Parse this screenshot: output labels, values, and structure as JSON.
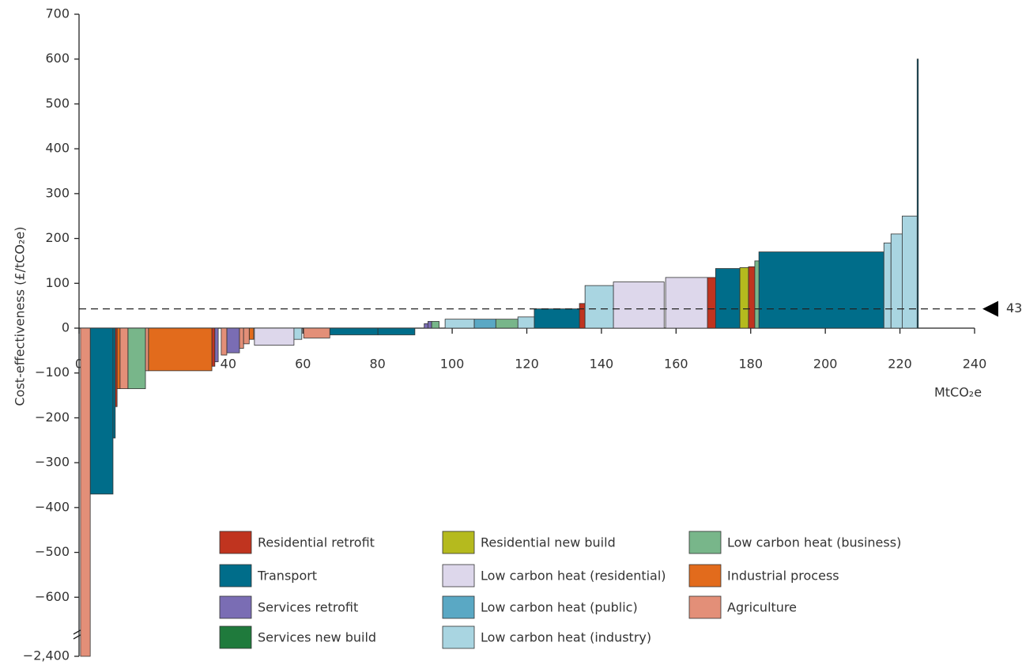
{
  "chart_data": {
    "type": "macc",
    "ylabel": "Cost-effectiveness (£/tCO₂e)",
    "xlabel": "MtCO₂e",
    "xlim": [
      0,
      240
    ],
    "xticks": [
      0,
      20,
      40,
      60,
      80,
      100,
      120,
      140,
      160,
      180,
      200,
      220,
      240
    ],
    "ylim": [
      -2400,
      700
    ],
    "axis_break": -680,
    "yticks": [
      700,
      600,
      500,
      400,
      300,
      200,
      100,
      0,
      {
        "value": -100,
        "label": "−100"
      },
      {
        "value": -200,
        "label": "−200"
      },
      {
        "value": -300,
        "label": "−300"
      },
      {
        "value": -400,
        "label": "−400"
      },
      {
        "value": -500,
        "label": "−500"
      },
      {
        "value": -600,
        "label": "−600"
      },
      {
        "value": -2400,
        "label": "−2,400"
      }
    ],
    "threshold": 43,
    "series": [
      {
        "name": "Residential retrofit",
        "color": "#c0341f",
        "x0": [
          9.7,
          35.6,
          134.1,
          168.4,
          179.4
        ],
        "x1": [
          10.2,
          36.4,
          135.6,
          170.6,
          181.1
        ],
        "values": [
          -175,
          -85,
          55,
          113,
          137
        ]
      },
      {
        "name": "Transport",
        "color": "#006d8a",
        "x0": [
          3.0,
          9.1,
          67.2,
          80.1,
          122,
          170.6,
          182.2,
          224.6
        ],
        "x1": [
          9.1,
          9.7,
          80.1,
          90.0,
          134.1,
          177.1,
          215.7,
          224.9
        ],
        "values": [
          -370,
          -245,
          -15,
          -15,
          43,
          133,
          170,
          600
        ]
      },
      {
        "name": "Services retrofit",
        "color": "#7a6db4",
        "x0": [
          36.4,
          39.6,
          92.5,
          93.5
        ],
        "x1": [
          37.3,
          43.0,
          93.5,
          94.5
        ],
        "values": [
          -75,
          -55,
          10,
          15
        ]
      },
      {
        "name": "Services new build",
        "color": "#1f7a3c",
        "x0": [],
        "x1": [],
        "values": []
      },
      {
        "name": "Residential new build",
        "color": "#b5ba1e",
        "x0": [
          177.1
        ],
        "x1": [
          179.4
        ],
        "values": [
          135
        ]
      },
      {
        "name": "Low carbon heat (residential)",
        "color": "#ddd7eb",
        "x0": [
          47.0,
          143.2,
          157.2
        ],
        "x1": [
          57.6,
          156.8,
          168.4
        ],
        "values": [
          -38,
          103,
          113
        ]
      },
      {
        "name": "Low carbon heat (public)",
        "color": "#5aa8c4",
        "x0": [
          105.9
        ],
        "x1": [
          111.7
        ],
        "values": [
          20
        ]
      },
      {
        "name": "Low carbon heat (industry)",
        "color": "#a9d5e1",
        "x0": [
          57.6,
          98.1,
          117.6,
          135.6,
          215.7,
          217.6,
          220.6
        ],
        "x1": [
          59.7,
          105.9,
          122,
          143.2,
          217.6,
          220.6,
          224.6
        ],
        "values": [
          -25,
          20,
          25,
          95,
          190,
          210,
          250
        ]
      },
      {
        "name": "Low carbon heat (business)",
        "color": "#78b68a",
        "x0": [
          13.1,
          94.5,
          111.7,
          181.1
        ],
        "x1": [
          17.8,
          96.5,
          117.6,
          182.2
        ],
        "values": [
          -135,
          15,
          20,
          150
        ]
      },
      {
        "name": "Industrial process",
        "color": "#e26b1c",
        "x0": [
          10.2,
          18.6,
          45.6
        ],
        "x1": [
          11.0,
          35.6,
          46.8
        ],
        "values": [
          -135,
          -95,
          -25
        ]
      },
      {
        "name": "Agriculture",
        "color": "#e38f78",
        "x0": [
          0.4,
          11.0,
          17.8,
          38.1,
          43.0,
          44.1,
          60.2
        ],
        "x1": [
          3.0,
          13.1,
          18.6,
          39.6,
          44.1,
          45.6,
          67.2
        ],
        "values": [
          -2400,
          -135,
          -95,
          -60,
          -45,
          -35,
          -22
        ]
      }
    ]
  }
}
